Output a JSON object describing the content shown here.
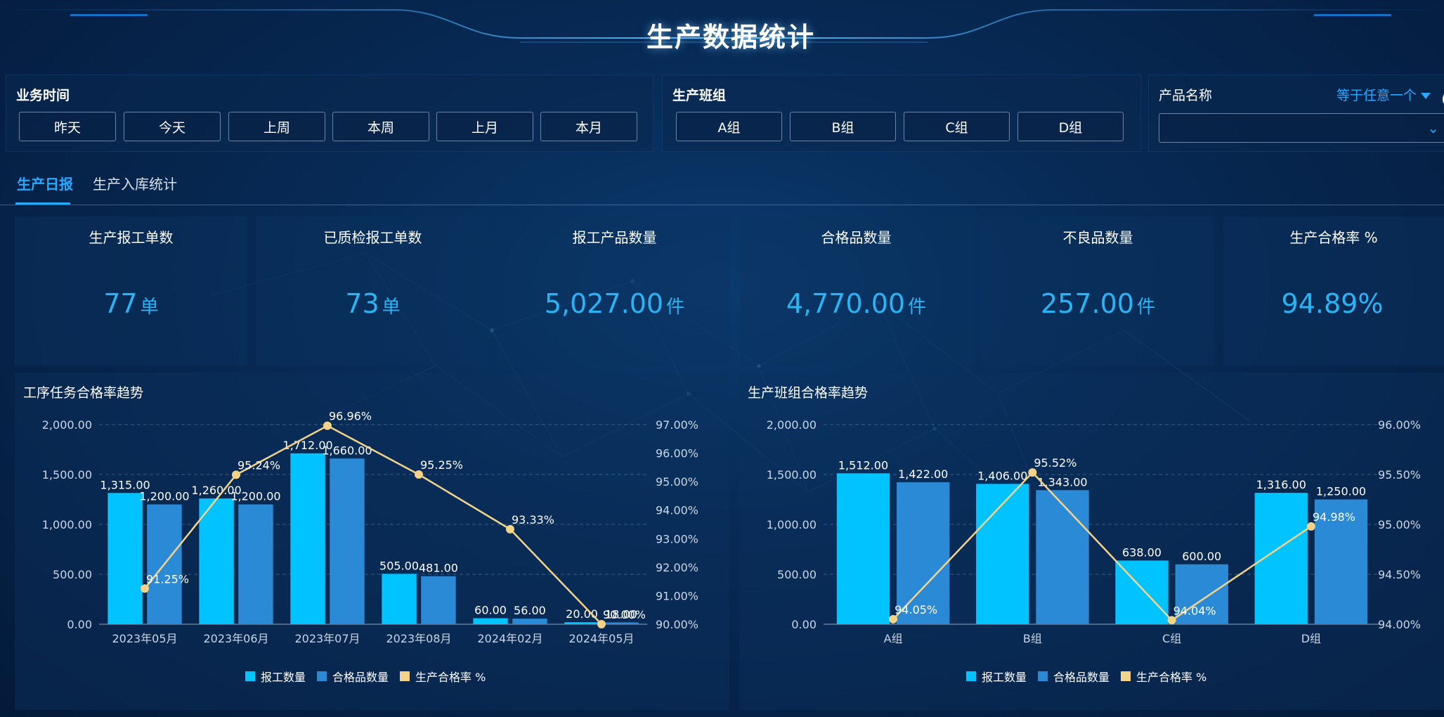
{
  "header": {
    "title": "生产数据统计"
  },
  "filters": {
    "time": {
      "label": "业务时间",
      "options": [
        "昨天",
        "今天",
        "上周",
        "本周",
        "上月",
        "本月"
      ]
    },
    "group": {
      "label": "生产班组",
      "options": [
        "A组",
        "B组",
        "C组",
        "D组"
      ]
    },
    "product": {
      "label": "产品名称",
      "condition": "等于任意一个",
      "value": ""
    }
  },
  "tabs": [
    {
      "label": "生产日报",
      "active": true
    },
    {
      "label": "生产入库统计",
      "active": false
    }
  ],
  "kpis": [
    {
      "title": "生产报工单数",
      "value": "77",
      "unit": "单"
    },
    {
      "title": "已质检报工单数",
      "value": "73",
      "unit": "单"
    },
    {
      "title": "报工产品数量",
      "value": "5,027.00",
      "unit": "件"
    },
    {
      "title": "合格品数量",
      "value": "4,770.00",
      "unit": "件"
    },
    {
      "title": "不良品数量",
      "value": "257.00",
      "unit": "件"
    },
    {
      "title": "生产合格率 %",
      "value": "94.89%",
      "unit": ""
    }
  ],
  "colors": {
    "accent": "#27a9ff",
    "bar1": "#00c3ff",
    "bar2": "#2b8ad6",
    "line": "#f3d38a",
    "kpi_value": "#27b5f5"
  },
  "chart_data": [
    {
      "type": "bar",
      "title": "工序任务合格率趋势",
      "categories": [
        "2023年05月",
        "2023年06月",
        "2023年07月",
        "2023年08月",
        "2024年02月",
        "2024年05月"
      ],
      "series": [
        {
          "name": "报工数量",
          "type": "bar",
          "axis": "left",
          "values": [
            1315,
            1260,
            1712,
            505,
            60,
            20
          ],
          "labels": [
            "1,315.00",
            "1,260.00",
            "1,712.00",
            "505.00",
            "60.00",
            "20.00"
          ]
        },
        {
          "name": "合格品数量",
          "type": "bar",
          "axis": "left",
          "values": [
            1200,
            1200,
            1660,
            481,
            56,
            18
          ],
          "labels": [
            "1,200.00",
            "1,200.00",
            "1,660.00",
            "481.00",
            "56.00",
            "18.00"
          ]
        },
        {
          "name": "生产合格率 %",
          "type": "line",
          "axis": "right",
          "values": [
            91.25,
            95.24,
            96.96,
            95.25,
            93.33,
            90.0
          ],
          "labels": [
            "91.25%",
            "95.24%",
            "96.96%",
            "95.25%",
            "93.33%",
            "90.00%"
          ]
        }
      ],
      "ylim_left": [
        0,
        2000
      ],
      "yticks_left": [
        "2,000.00",
        "1,500.00",
        "1,000.00",
        "500.00",
        "0.00"
      ],
      "ylim_right": [
        90,
        97
      ],
      "yticks_right": [
        "97.00%",
        "96.00%",
        "95.00%",
        "94.00%",
        "93.00%",
        "92.00%",
        "91.00%",
        "90.00%"
      ],
      "grid": true,
      "legend": "bottom-center"
    },
    {
      "type": "bar",
      "title": "生产班组合格率趋势",
      "categories": [
        "A组",
        "B组",
        "C组",
        "D组"
      ],
      "series": [
        {
          "name": "报工数量",
          "type": "bar",
          "axis": "left",
          "values": [
            1512,
            1406,
            638,
            1316
          ],
          "labels": [
            "1,512.00",
            "1,406.00",
            "638.00",
            "1,316.00"
          ]
        },
        {
          "name": "合格品数量",
          "type": "bar",
          "axis": "left",
          "values": [
            1422,
            1343,
            600,
            1250
          ],
          "labels": [
            "1,422.00",
            "1,343.00",
            "600.00",
            "1,250.00"
          ]
        },
        {
          "name": "生产合格率 %",
          "type": "line",
          "axis": "right",
          "values": [
            94.05,
            95.52,
            94.04,
            94.98
          ],
          "labels": [
            "94.05%",
            "95.52%",
            "94.04%",
            "94.98%"
          ]
        }
      ],
      "ylim_left": [
        0,
        2000
      ],
      "yticks_left": [
        "2,000.00",
        "1,500.00",
        "1,000.00",
        "500.00",
        "0.00"
      ],
      "ylim_right": [
        94,
        96
      ],
      "yticks_right": [
        "96.00%",
        "95.50%",
        "95.00%",
        "94.50%",
        "94.00%"
      ],
      "grid": true,
      "legend": "bottom-center"
    }
  ]
}
